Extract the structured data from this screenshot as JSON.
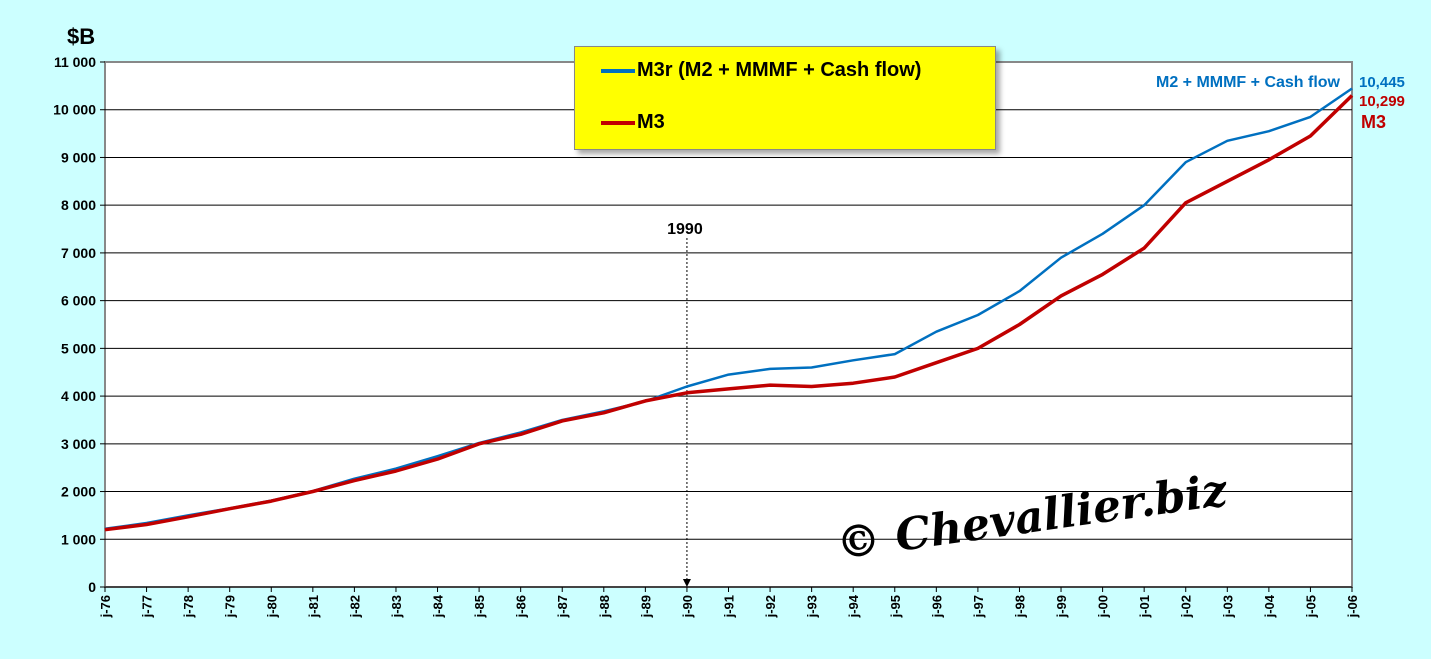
{
  "chart_data": {
    "type": "line",
    "title": "",
    "ylabel": "$B",
    "xlabel": "",
    "ylim": [
      0,
      11000
    ],
    "yticks": [
      0,
      1000,
      2000,
      3000,
      4000,
      5000,
      6000,
      7000,
      8000,
      9000,
      10000,
      11000
    ],
    "ytick_labels": [
      "0",
      "1 000",
      "2 000",
      "3 000",
      "4 000",
      "5 000",
      "6 000",
      "7 000",
      "8 000",
      "9 000",
      "10 000",
      "11 000"
    ],
    "x": [
      1976,
      1977,
      1978,
      1979,
      1980,
      1981,
      1982,
      1983,
      1984,
      1985,
      1986,
      1987,
      1988,
      1989,
      1990,
      1991,
      1992,
      1993,
      1994,
      1995,
      1996,
      1997,
      1998,
      1999,
      2000,
      2001,
      2002,
      2003,
      2004,
      2005,
      2006
    ],
    "xtick_labels": [
      "j-76",
      "j-77",
      "j-78",
      "j-79",
      "j-80",
      "j-81",
      "j-82",
      "j-83",
      "j-84",
      "j-85",
      "j-86",
      "j-87",
      "j-88",
      "j-89",
      "j-90",
      "j-91",
      "j-92",
      "j-93",
      "j-94",
      "j-95",
      "j-96",
      "j-97",
      "j-98",
      "j-99",
      "j-00",
      "j-01",
      "j-02",
      "j-03",
      "j-04",
      "j-05",
      "j-06"
    ],
    "grid": true,
    "legend_placement": "top-center",
    "series": [
      {
        "name": "M3r (M2 + MMMF + Cash flow)",
        "color": "#0070c0",
        "values": [
          1220,
          1340,
          1500,
          1650,
          1810,
          2010,
          2270,
          2480,
          2740,
          3020,
          3240,
          3500,
          3680,
          3890,
          4200,
          4450,
          4570,
          4600,
          4750,
          4880,
          5350,
          5700,
          6200,
          6900,
          7400,
          8000,
          8900,
          9350,
          9550,
          9850,
          10445
        ]
      },
      {
        "name": "M3",
        "color": "#c00000",
        "values": [
          1200,
          1310,
          1470,
          1640,
          1800,
          2000,
          2230,
          2430,
          2680,
          3000,
          3200,
          3480,
          3650,
          3900,
          4070,
          4150,
          4230,
          4200,
          4270,
          4400,
          4700,
          5000,
          5500,
          6100,
          6550,
          7100,
          8050,
          8500,
          8950,
          9450,
          10299
        ]
      }
    ],
    "annotations": {
      "marker_label": "1990",
      "marker_x": 1990,
      "blue_end_label": "M2 + MMMF + Cash flow",
      "blue_end_value": "10,445",
      "red_end_value": "10,299",
      "red_end_label": "M3"
    },
    "watermark": "© Chevallier.biz"
  }
}
